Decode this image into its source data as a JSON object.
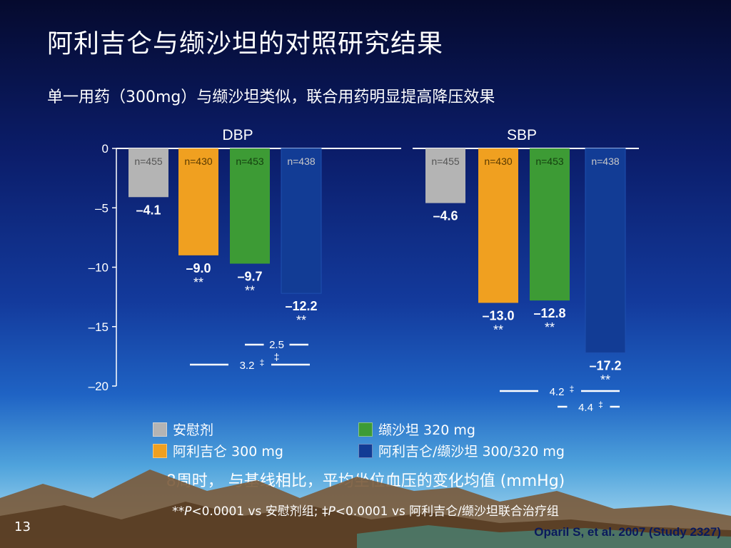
{
  "title": "阿利吉仑与缬沙坦的对照研究结果",
  "subtitle": "单一用药（300mg）与缬沙坦类似，联合用药明显提高降压效果",
  "colors": {
    "placebo": "#b4b4b4",
    "aliskiren": "#f0a020",
    "valsartan": "#3d9b35",
    "combination": "#123c95",
    "axis": "#ffffff"
  },
  "chart_data": {
    "type": "bar",
    "groups": [
      "DBP",
      "SBP"
    ],
    "ylim": [
      -20,
      0
    ],
    "yticks": [
      "0",
      "–5",
      "–10",
      "–15",
      "–20"
    ],
    "ytick_values": [
      0,
      -5,
      -10,
      -15,
      -20
    ],
    "xlabel": "8周时， 与基线相比，平均坐位血压的变化均值 (mmHg)",
    "series": [
      {
        "name": "安慰剂",
        "values": [
          -4.1,
          -4.6
        ],
        "labels": [
          "–4.1",
          "–4.6"
        ],
        "n": [
          "n=455",
          "n=455"
        ],
        "sig": [
          "",
          ""
        ]
      },
      {
        "name": "阿利吉仑 300 mg",
        "values": [
          -9.0,
          -13.0
        ],
        "labels": [
          "–9.0",
          "–13.0"
        ],
        "n": [
          "n=430",
          "n=430"
        ],
        "sig": [
          "**",
          "**"
        ]
      },
      {
        "name": "缬沙坦 320 mg",
        "values": [
          -9.7,
          -12.8
        ],
        "labels": [
          "–9.7",
          "–12.8"
        ],
        "n": [
          "n=453",
          "n=453"
        ],
        "sig": [
          "**",
          "**"
        ]
      },
      {
        "name": "阿利吉仑/缬沙坦 300/320 mg",
        "values": [
          -12.2,
          -17.2
        ],
        "labels": [
          "–12.2",
          "–17.2"
        ],
        "n": [
          "n=438",
          "n=438"
        ],
        "sig": [
          "**",
          "**"
        ]
      }
    ],
    "comparisons": [
      {
        "group": "DBP",
        "label": "2.5",
        "mark": "‡"
      },
      {
        "group": "DBP",
        "label": "3.2",
        "mark": "‡"
      },
      {
        "group": "SBP",
        "label": "4.2",
        "mark": "‡"
      },
      {
        "group": "SBP",
        "label": "4.4",
        "mark": "‡"
      }
    ]
  },
  "legend": {
    "placebo": "安慰剂",
    "aliskiren": "阿利吉仑 300 mg",
    "valsartan": "缬沙坦 320 mg",
    "combination": "阿利吉仑/缬沙坦 300/320 mg"
  },
  "footnote_parts": {
    "p1_prefix": "**",
    "p_letter": "P",
    "p1_text": "<0.0001 vs 安慰剂组; ‡",
    "p2_text": "<0.0001 vs 阿利吉仑/缬沙坦联合治疗组"
  },
  "slide_number": "13",
  "citation": "Oparil S, et al. 2007 (Study 2327)"
}
